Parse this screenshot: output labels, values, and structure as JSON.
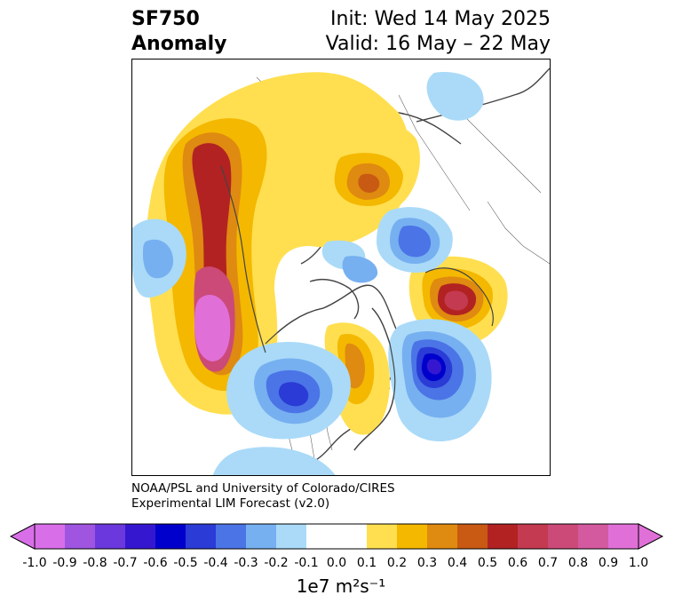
{
  "header": {
    "title_line1": "SF750",
    "title_line2": "Anomaly",
    "init_text": "Init: Wed 14 May 2025",
    "valid_text": "Valid: 16 May – 22 May"
  },
  "credit": {
    "line1": "NOAA/PSL and University of Colorado/CIRES",
    "line2": "Experimental LIM Forecast (v2.0)"
  },
  "colorbar": {
    "tick_labels": [
      "-1.0",
      "-0.9",
      "-0.8",
      "-0.7",
      "-0.6",
      "-0.5",
      "-0.4",
      "-0.3",
      "-0.2",
      "-0.1",
      "0.0",
      "0.1",
      "0.2",
      "0.3",
      "0.4",
      "0.5",
      "0.6",
      "0.7",
      "0.8",
      "0.9",
      "1.0"
    ],
    "colors": [
      "#d86fe8",
      "#9f55e0",
      "#6a38dc",
      "#3617d0",
      "#0000cc",
      "#2a3bd6",
      "#4b74e6",
      "#76b0f0",
      "#aadaf8",
      "#ffffff",
      "#ffffff",
      "#ffdf50",
      "#f4b800",
      "#df8a10",
      "#c85a14",
      "#b22222",
      "#c43a50",
      "#cc4a78",
      "#d45aa0",
      "#e070d8"
    ],
    "units_text": "1e7 m²s⁻¹"
  }
}
